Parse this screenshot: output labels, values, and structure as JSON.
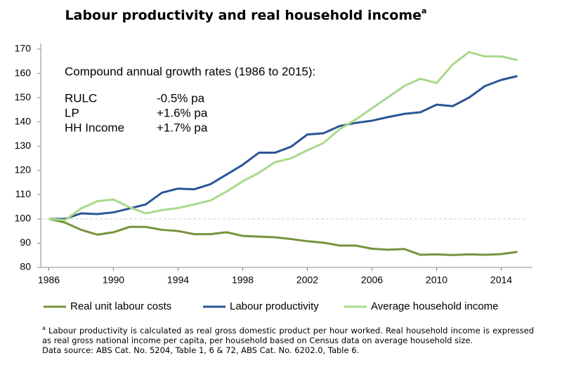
{
  "chart_data": {
    "type": "line",
    "title": "Labour productivity and real household income",
    "title_marker": "a",
    "x": [
      1986,
      1987,
      1988,
      1989,
      1990,
      1991,
      1992,
      1993,
      1994,
      1995,
      1996,
      1997,
      1998,
      1999,
      2000,
      2001,
      2002,
      2003,
      2004,
      2005,
      2006,
      2007,
      2008,
      2009,
      2010,
      2011,
      2012,
      2013,
      2014,
      2015
    ],
    "series": [
      {
        "name": "Real unit labour costs",
        "color": "#77933c",
        "values": [
          100,
          98.5,
          95.5,
          93.5,
          94.5,
          96.7,
          96.7,
          95.5,
          95,
          93.7,
          93.7,
          94.5,
          93,
          92.7,
          92.4,
          91.7,
          90.8,
          90.2,
          89,
          89,
          87.7,
          87.3,
          87.6,
          85.2,
          85.4,
          85.1,
          85.4,
          85.2,
          85.5,
          86.4
        ]
      },
      {
        "name": "Labour productivity",
        "color": "#2a5597",
        "values": [
          100,
          100,
          102.3,
          102,
          102.7,
          104.3,
          106,
          110.8,
          112.5,
          112.2,
          114.3,
          118.3,
          122.3,
          127.3,
          127.3,
          129.8,
          134.8,
          135.3,
          138.3,
          139.6,
          140.5,
          142,
          143.3,
          144,
          147.1,
          146.5,
          150,
          154.8,
          157.3,
          158.9
        ]
      },
      {
        "name": "Average household income",
        "color": "#a9d98b",
        "values": [
          100,
          99.5,
          104.3,
          107.3,
          108,
          104.8,
          102.3,
          103.6,
          104.5,
          106,
          107.6,
          111.3,
          115.5,
          119,
          123.4,
          125,
          128.3,
          131.3,
          137,
          141,
          145.6,
          150.2,
          154.8,
          157.8,
          156,
          163.7,
          168.8,
          167,
          167,
          165.5
        ]
      }
    ],
    "xlim": [
      1985.5,
      2015.5
    ],
    "xticks": [
      1986,
      1990,
      1994,
      1998,
      2002,
      2006,
      2010,
      2014
    ],
    "ylim": [
      80,
      170
    ],
    "yticks": [
      80,
      90,
      100,
      110,
      120,
      130,
      140,
      150,
      160,
      170
    ],
    "reference_line": 100,
    "grid": false,
    "legend": "bottom",
    "annotation": {
      "heading": "Compound annual growth rates (1986 to 2015):",
      "rows": [
        [
          "RULC",
          "-0.5% pa"
        ],
        [
          "LP",
          "+1.6% pa"
        ],
        [
          "HH Income",
          "+1.7% pa"
        ]
      ]
    },
    "footnote_marker": "a",
    "footnote": "Labour productivity is calculated as real gross domestic product per hour worked. Real household income is expressed as real gross national income per capita, per household based on Census data on average household size.",
    "source": "Data source: ABS Cat. No. 5204, Table 1, 6 & 72, ABS Cat. No. 6202.0, Table 6."
  }
}
